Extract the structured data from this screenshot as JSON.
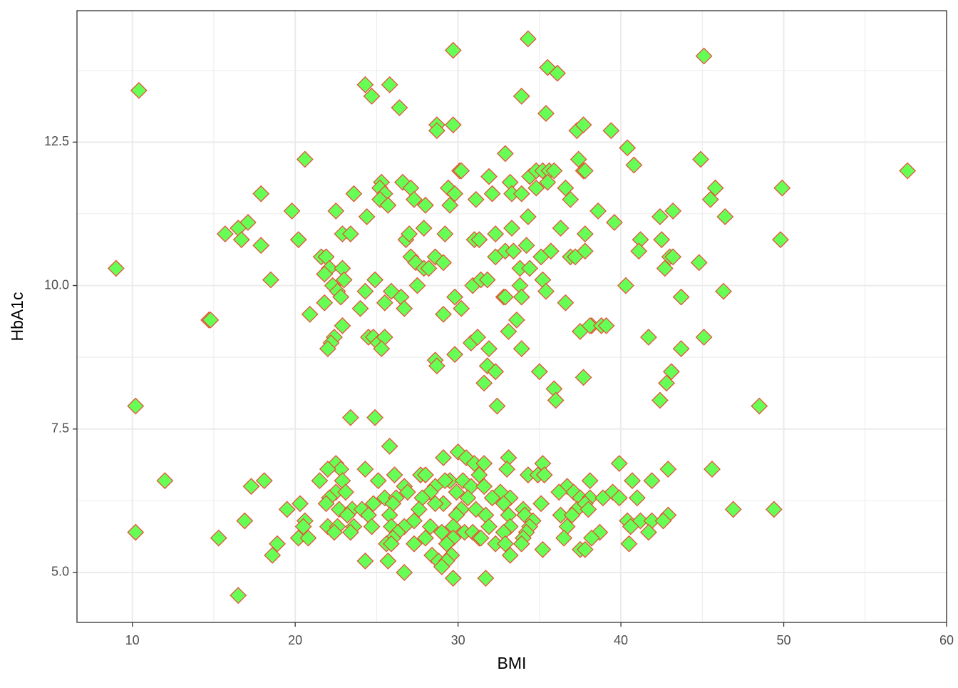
{
  "chart_data": {
    "type": "scatter",
    "x_label": "BMI",
    "y_label": "HbA1c",
    "xlim": [
      6.6,
      60.0
    ],
    "ylim": [
      4.13,
      14.79
    ],
    "xticks": [
      10,
      20,
      30,
      40,
      50,
      60
    ],
    "yticks": [
      {
        "value": 5,
        "label": "5.0"
      },
      7.5,
      {
        "value": 10,
        "label": "10.0"
      },
      12.5
    ],
    "x_minor_gridlines": [
      15,
      25,
      35,
      45,
      55
    ],
    "y_minor_gridlines": [
      6.25,
      8.75,
      11.25,
      13.75
    ],
    "grid": true,
    "color": "#66ff55",
    "edge_color": "#e8503a",
    "x": [
      34.3,
      29.7,
      45.1,
      10.4,
      24.3,
      25.8,
      24.7,
      26.4,
      33.9,
      35.5,
      36.1,
      35.4,
      28.7,
      28.7,
      29.7,
      37.3,
      37.7,
      39.4,
      20.6,
      32.9,
      37.4,
      40.4,
      44.9,
      40.8,
      30.1,
      30.2,
      37.7,
      37.8,
      57.6,
      31.9,
      34.4,
      34.8,
      35.2,
      35.6,
      35.9,
      35.5,
      33.2,
      25.3,
      26.6,
      25.2,
      27.1,
      29.4,
      29.8,
      34.8,
      36.6,
      45.8,
      49.9,
      17.9,
      23.6,
      25.5,
      25.2,
      27.3,
      31.1,
      32.1,
      33.3,
      33.9,
      36.9,
      45.5,
      25.7,
      28.0,
      29.5,
      19.8,
      22.5,
      38.6,
      43.2,
      17.1,
      24.4,
      34.3,
      39.6,
      42.4,
      46.4,
      15.7,
      16.5,
      16.7,
      22.9,
      23.4,
      26.8,
      27.0,
      27.9,
      29.2,
      31.0,
      31.3,
      32.3,
      33.3,
      36.3,
      37.8,
      41.2,
      42.5,
      49.8,
      17.9,
      20.2,
      28.6,
      29.1,
      32.3,
      32.9,
      33.4,
      34.2,
      35.1,
      35.7,
      36.9,
      37.2,
      37.8,
      41.1,
      43.0,
      43.2,
      44.8,
      9.0,
      21.6,
      21.9,
      22.1,
      21.8,
      22.3,
      22.9,
      23.0,
      22.6,
      22.8,
      24.3,
      24.9,
      27.1,
      27.4,
      27.9,
      28.2,
      27.5,
      30.9,
      31.4,
      31.8,
      33.8,
      33.8,
      34.4,
      35.2,
      35.4,
      42.7,
      18.5,
      40.3,
      46.3,
      26.5,
      25.5,
      25.9,
      26.7,
      29.8,
      30.2,
      32.8,
      32.9,
      33.9,
      36.6,
      43.7,
      21.8,
      20.9,
      24.0,
      14.7,
      14.8,
      29.1,
      33.6,
      22.9,
      37.5,
      38.2,
      38.1,
      38.8,
      39.1,
      33.1,
      22.4,
      22.2,
      22.0,
      24.5,
      24.8,
      25.1,
      25.5,
      25.3,
      30.8,
      31.2,
      31.9,
      33.9,
      41.7,
      45.1,
      43.7,
      28.6,
      28.7,
      29.8,
      31.8,
      32.3,
      35.0,
      37.7,
      43.1,
      31.6,
      35.9,
      42.8,
      36.0,
      42.4,
      10.2,
      32.4,
      48.5,
      23.4,
      24.9,
      25.8,
      30.0,
      29.1,
      30.5,
      31.0,
      31.6,
      33.1,
      35.2,
      39.9,
      22.5,
      22.8,
      22.0,
      24.3,
      33.0,
      42.9,
      45.6,
      26.1,
      27.7,
      28.0,
      29.5,
      30.3,
      31.3,
      34.3,
      34.9,
      35.3,
      12.0,
      18.1,
      21.5,
      22.9,
      25.1,
      28.6,
      29.2,
      30.8,
      38.1,
      40.7,
      41.9,
      17.3,
      26.7,
      26.9,
      28.3,
      29.9,
      31.6,
      32.6,
      36.7,
      37.1,
      22.5,
      23.1,
      25.5,
      26.2,
      27.8,
      29.1,
      30.6,
      32.1,
      33.2,
      36.2,
      37.5,
      38.1,
      38.9,
      39.5,
      39.9,
      41.0,
      22.1,
      21.9,
      22.7,
      23.5,
      24.1,
      24.8,
      26.0,
      27.6,
      28.6,
      30.2,
      31.1,
      32.8,
      34.0,
      35.1,
      37.3,
      37.8,
      38.0,
      19.5,
      20.3,
      46.9,
      49.4,
      23.2,
      24.5,
      25.8,
      27.3,
      29.9,
      31.7,
      33.1,
      34.1,
      34.6,
      36.3,
      37.0,
      40.4,
      41.2,
      41.9,
      42.9,
      16.9,
      20.6,
      22.0,
      22.6,
      23.6,
      24.7,
      25.9,
      26.7,
      28.3,
      29.7,
      30.4,
      31.9,
      33.2,
      34.4,
      36.7,
      40.6,
      42.6,
      10.2,
      20.5,
      22.4,
      23.4,
      26.3,
      29.0,
      30.9,
      31.3,
      32.8,
      34.2,
      38.7,
      41.7,
      15.3,
      20.2,
      20.8,
      26.0,
      28.0,
      29.7,
      31.4,
      34.0,
      36.5,
      38.2,
      40.5,
      18.9,
      25.6,
      25.9,
      27.3,
      29.3,
      32.3,
      32.9,
      33.9,
      35.2,
      37.5,
      37.8,
      18.6,
      28.4,
      33.2,
      29.6,
      24.3,
      25.7,
      28.8,
      29.3,
      29.0,
      26.7,
      29.7,
      31.7,
      16.5
    ],
    "values": [
      14.3,
      14.1,
      14.0,
      13.4,
      13.5,
      13.5,
      13.3,
      13.1,
      13.3,
      13.8,
      13.7,
      13.0,
      12.8,
      12.7,
      12.8,
      12.7,
      12.8,
      12.7,
      12.2,
      12.3,
      12.2,
      12.4,
      12.2,
      12.1,
      12.0,
      12.0,
      12.0,
      12.0,
      12.0,
      11.9,
      11.9,
      12.0,
      12.0,
      12.0,
      12.0,
      11.8,
      11.8,
      11.8,
      11.8,
      11.7,
      11.7,
      11.7,
      11.6,
      11.7,
      11.7,
      11.7,
      11.7,
      11.6,
      11.6,
      11.6,
      11.5,
      11.5,
      11.5,
      11.6,
      11.6,
      11.6,
      11.5,
      11.5,
      11.4,
      11.4,
      11.4,
      11.3,
      11.3,
      11.3,
      11.3,
      11.1,
      11.2,
      11.2,
      11.1,
      11.2,
      11.2,
      10.9,
      11.0,
      10.8,
      10.9,
      10.9,
      10.8,
      10.9,
      11.0,
      10.9,
      10.8,
      10.8,
      10.9,
      11.0,
      11.0,
      10.9,
      10.8,
      10.8,
      10.8,
      10.7,
      10.8,
      10.5,
      10.4,
      10.5,
      10.6,
      10.6,
      10.7,
      10.5,
      10.6,
      10.5,
      10.5,
      10.6,
      10.6,
      10.5,
      10.5,
      10.4,
      10.3,
      10.5,
      10.5,
      10.3,
      10.2,
      10.0,
      10.3,
      10.1,
      9.9,
      9.8,
      9.9,
      10.1,
      10.5,
      10.4,
      10.3,
      10.3,
      10.0,
      10.0,
      10.1,
      10.1,
      10.3,
      10.0,
      10.3,
      10.1,
      9.9,
      10.3,
      10.1,
      10.0,
      9.9,
      9.8,
      9.7,
      9.9,
      9.6,
      9.8,
      9.6,
      9.8,
      9.8,
      9.8,
      9.7,
      9.8,
      9.7,
      9.5,
      9.6,
      9.4,
      9.4,
      9.5,
      9.4,
      9.3,
      9.2,
      9.3,
      9.3,
      9.3,
      9.3,
      9.2,
      9.1,
      9.0,
      8.9,
      9.1,
      9.1,
      9.0,
      9.1,
      8.9,
      9.0,
      9.1,
      8.9,
      8.9,
      9.1,
      9.1,
      8.9,
      8.7,
      8.6,
      8.8,
      8.6,
      8.5,
      8.5,
      8.4,
      8.5,
      8.3,
      8.2,
      8.3,
      8.0,
      8.0,
      7.9,
      7.9,
      7.9,
      7.7,
      7.7,
      7.2,
      7.1,
      7.0,
      7.0,
      6.9,
      6.9,
      7.0,
      6.9,
      6.9,
      6.9,
      6.8,
      6.8,
      6.8,
      6.8,
      6.8,
      6.8,
      6.7,
      6.7,
      6.7,
      6.6,
      6.6,
      6.7,
      6.7,
      6.7,
      6.7,
      6.6,
      6.6,
      6.6,
      6.6,
      6.6,
      6.5,
      6.6,
      6.5,
      6.6,
      6.6,
      6.6,
      6.5,
      6.5,
      6.4,
      6.4,
      6.4,
      6.5,
      6.4,
      6.5,
      6.4,
      6.4,
      6.4,
      6.3,
      6.3,
      6.3,
      6.2,
      6.3,
      6.3,
      6.3,
      6.4,
      6.3,
      6.3,
      6.3,
      6.4,
      6.3,
      6.3,
      6.3,
      6.2,
      6.1,
      6.1,
      6.1,
      6.2,
      6.2,
      6.1,
      6.2,
      6.1,
      6.1,
      6.2,
      6.1,
      6.2,
      6.1,
      6.2,
      6.1,
      6.1,
      6.2,
      6.1,
      6.1,
      6.0,
      6.0,
      6.0,
      5.9,
      6.0,
      6.0,
      6.0,
      6.0,
      5.9,
      6.0,
      6.0,
      5.9,
      5.9,
      5.9,
      6.0,
      5.9,
      5.9,
      5.8,
      5.8,
      5.8,
      5.8,
      5.8,
      5.8,
      5.8,
      5.8,
      5.7,
      5.8,
      5.8,
      5.8,
      5.8,
      5.8,
      5.9,
      5.7,
      5.8,
      5.7,
      5.7,
      5.7,
      5.7,
      5.7,
      5.6,
      5.7,
      5.7,
      5.7,
      5.7,
      5.6,
      5.6,
      5.6,
      5.6,
      5.6,
      5.6,
      5.6,
      5.6,
      5.6,
      5.6,
      5.5,
      5.5,
      5.5,
      5.5,
      5.5,
      5.5,
      5.5,
      5.5,
      5.5,
      5.4,
      5.4,
      5.4,
      5.3,
      5.3,
      5.3,
      5.3,
      5.2,
      5.2,
      5.2,
      5.2,
      5.1,
      5.0,
      4.9,
      4.9,
      4.6
    ]
  }
}
